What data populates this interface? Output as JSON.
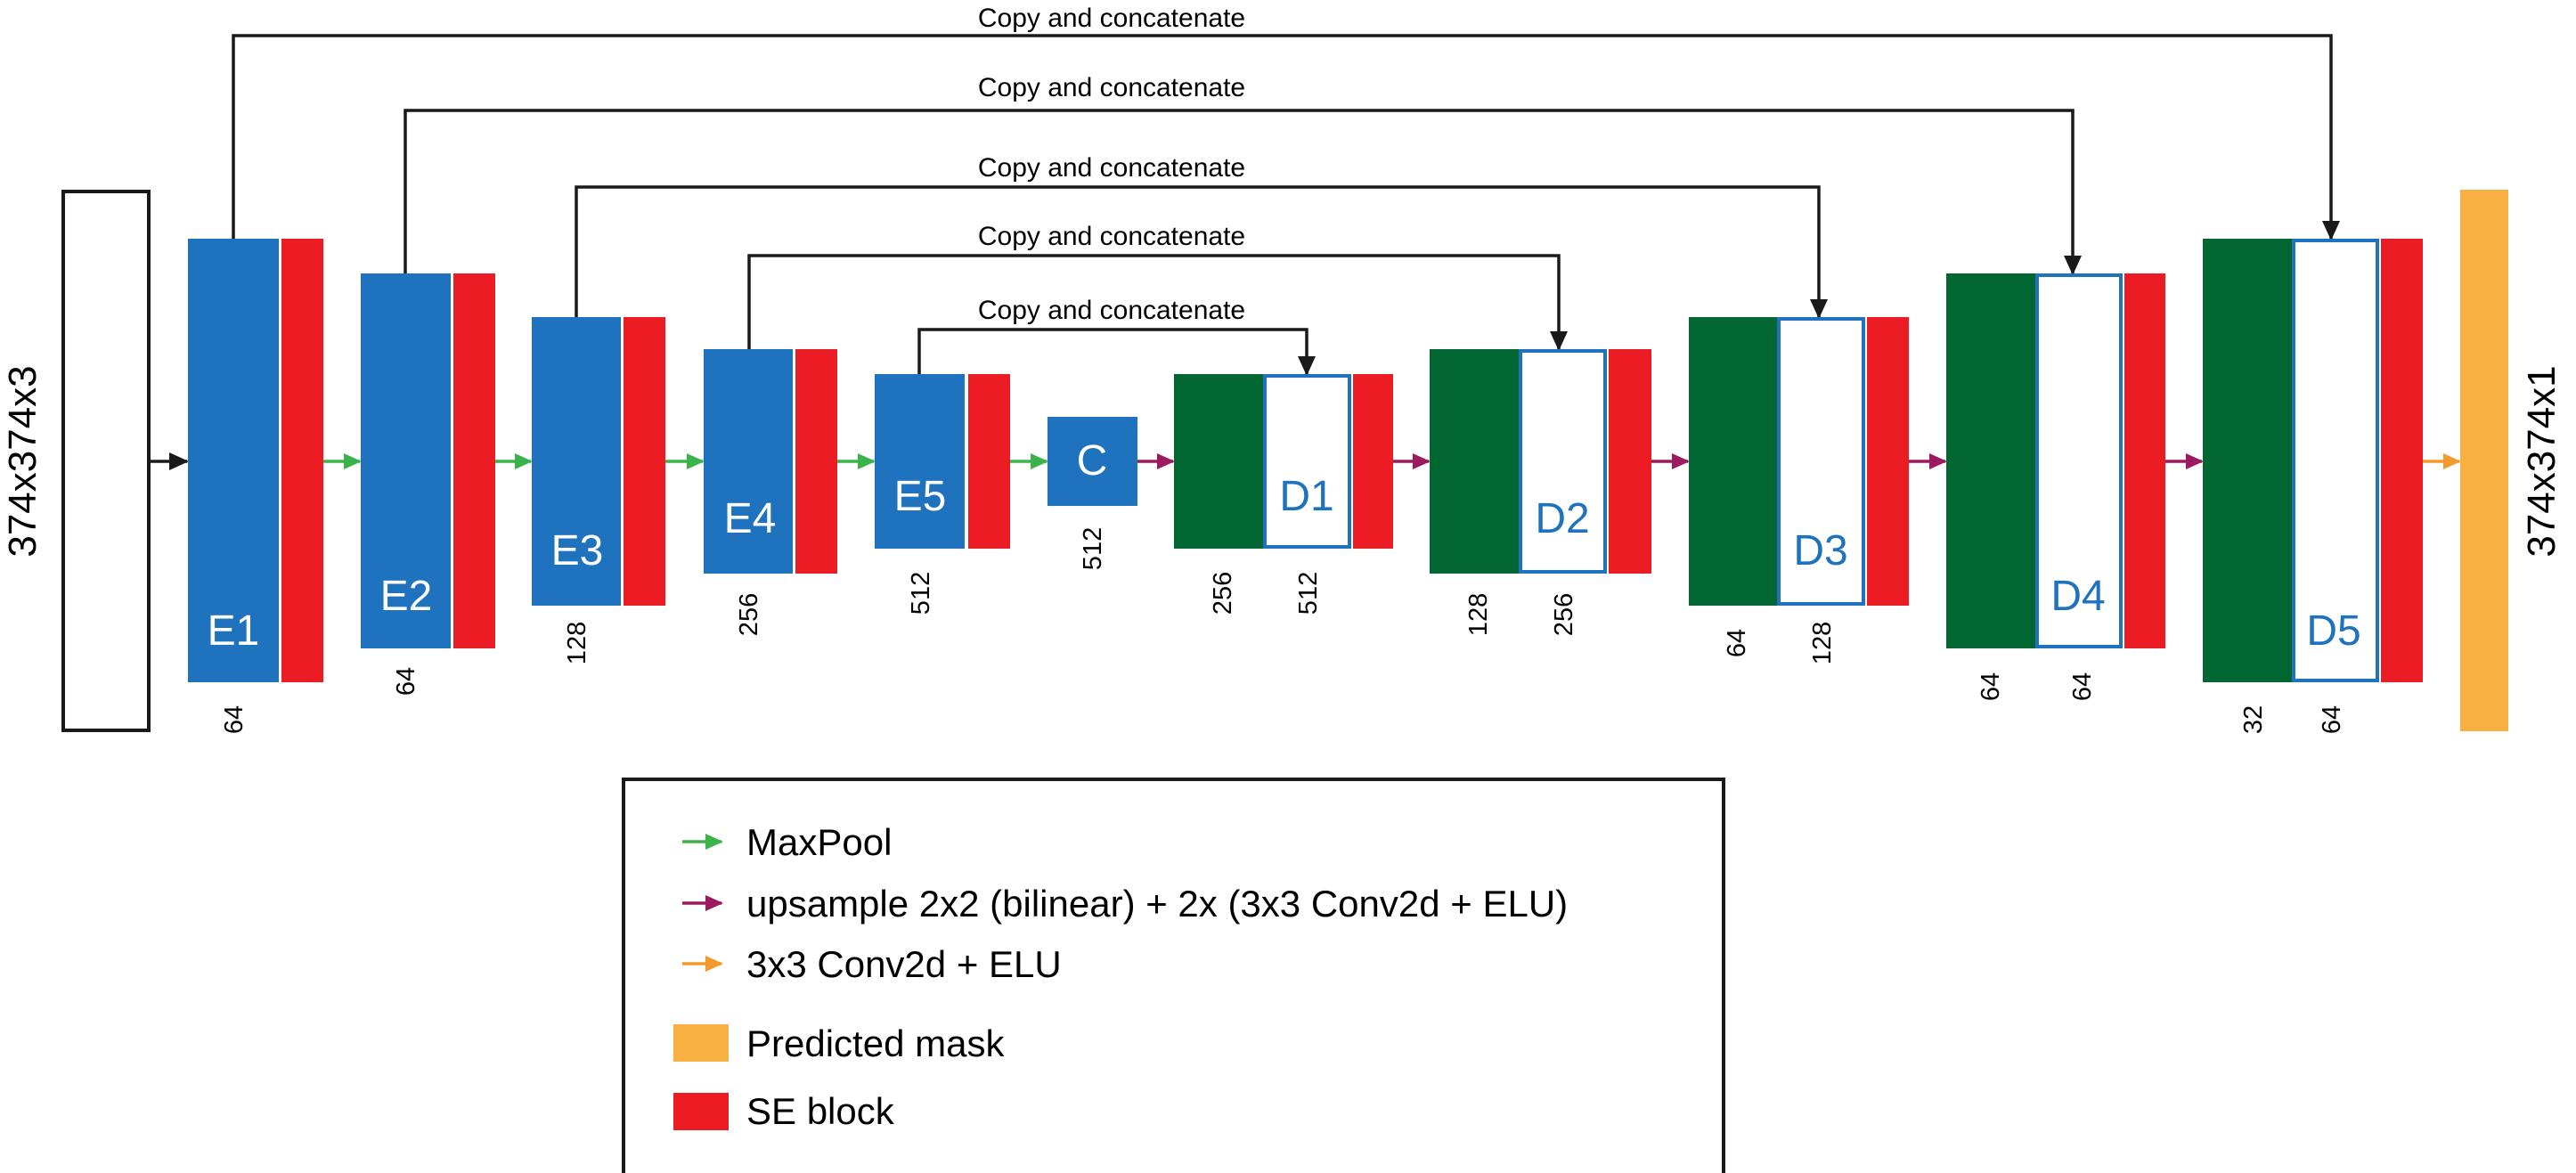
{
  "colors": {
    "encoder": "#1f72bd",
    "decoder": "#016632",
    "se_block": "#ec1c24",
    "predicted_mask": "#f9b042",
    "maxpool_arrow": "#3bb34a",
    "upsample_arrow": "#9c1a5f",
    "conv_arrow": "#f49a2c",
    "line": "#1a1a1a"
  },
  "input_dim": "374x374x3",
  "output_dim": "374x374x1",
  "skip_label": "Copy and concatenate",
  "encoder": [
    {
      "name": "E1",
      "channels": "64"
    },
    {
      "name": "E2",
      "channels": "64"
    },
    {
      "name": "E3",
      "channels": "128"
    },
    {
      "name": "E4",
      "channels": "256"
    },
    {
      "name": "E5",
      "channels": "512"
    }
  ],
  "center": {
    "name": "C",
    "channels": "512"
  },
  "decoder": [
    {
      "name": "D1",
      "channels_left": "256",
      "channels_right": "512"
    },
    {
      "name": "D2",
      "channels_left": "128",
      "channels_right": "256"
    },
    {
      "name": "D3",
      "channels_left": "64",
      "channels_right": "128"
    },
    {
      "name": "D4",
      "channels_left": "64",
      "channels_right": "64"
    },
    {
      "name": "D5",
      "channels_left": "32",
      "channels_right": "64"
    }
  ],
  "legend": {
    "maxpool": "MaxPool",
    "upsample": "upsample 2x2 (bilinear) + 2x (3x3 Conv2d + ELU)",
    "conv": "3x3 Conv2d + ELU",
    "predicted_mask": "Predicted mask",
    "se_block": "SE block"
  }
}
